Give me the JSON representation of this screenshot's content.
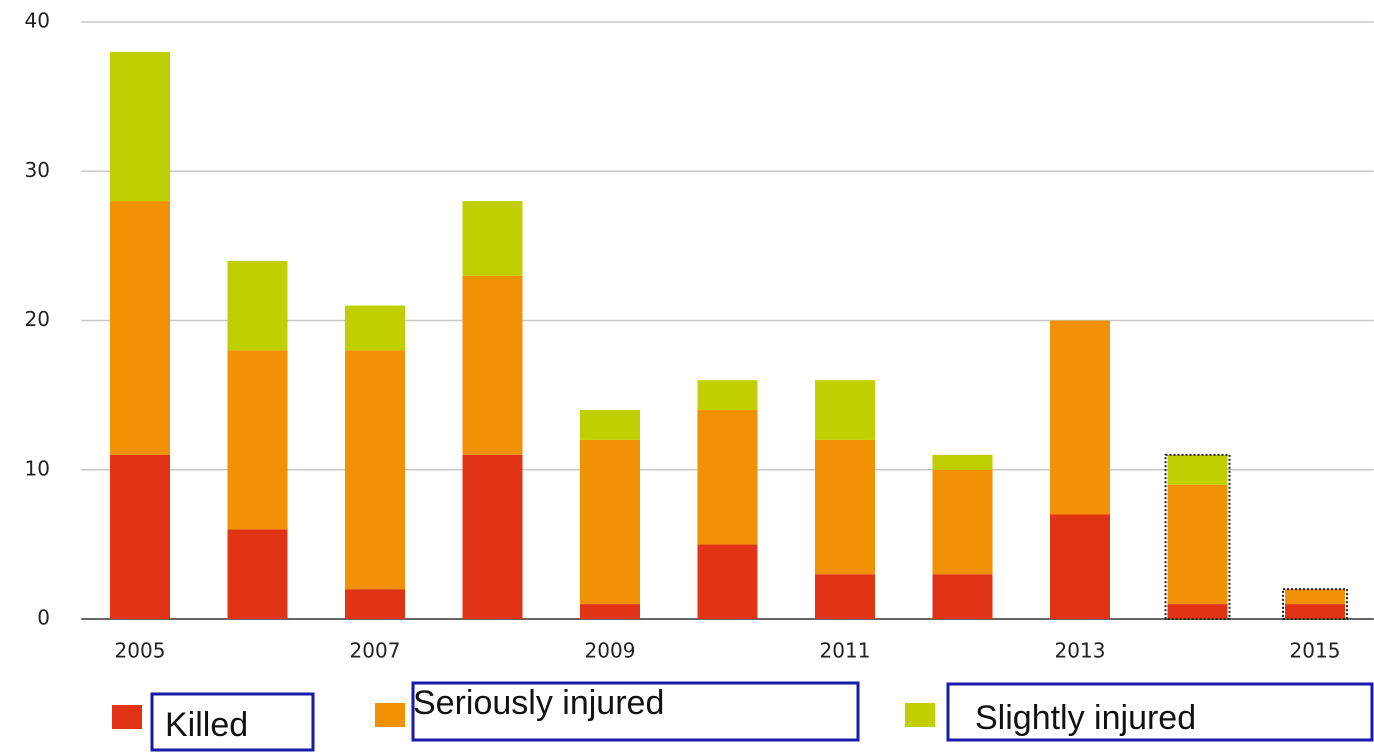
{
  "chart_data": {
    "type": "stacked_bar",
    "categories": [
      "2005",
      null,
      "2007",
      null,
      "2009",
      null,
      "2011",
      null,
      "2013",
      null,
      "2015"
    ],
    "series": [
      {
        "name": "Killed",
        "color": "#e03414",
        "values": [
          11,
          6,
          2,
          11,
          1,
          5,
          3,
          3,
          7,
          1,
          1
        ]
      },
      {
        "name": "Seriously injured",
        "color": "#f29106",
        "values": [
          17,
          12,
          16,
          12,
          11,
          9,
          9,
          7,
          13,
          8,
          1
        ]
      },
      {
        "name": "Slightly injured",
        "color": "#bfcf00",
        "values": [
          10,
          6,
          3,
          5,
          2,
          2,
          4,
          1,
          0,
          2,
          0
        ]
      }
    ],
    "ylim": [
      0,
      40
    ],
    "yticks": [
      0,
      10,
      20,
      30,
      40
    ],
    "grid": true
  }
}
